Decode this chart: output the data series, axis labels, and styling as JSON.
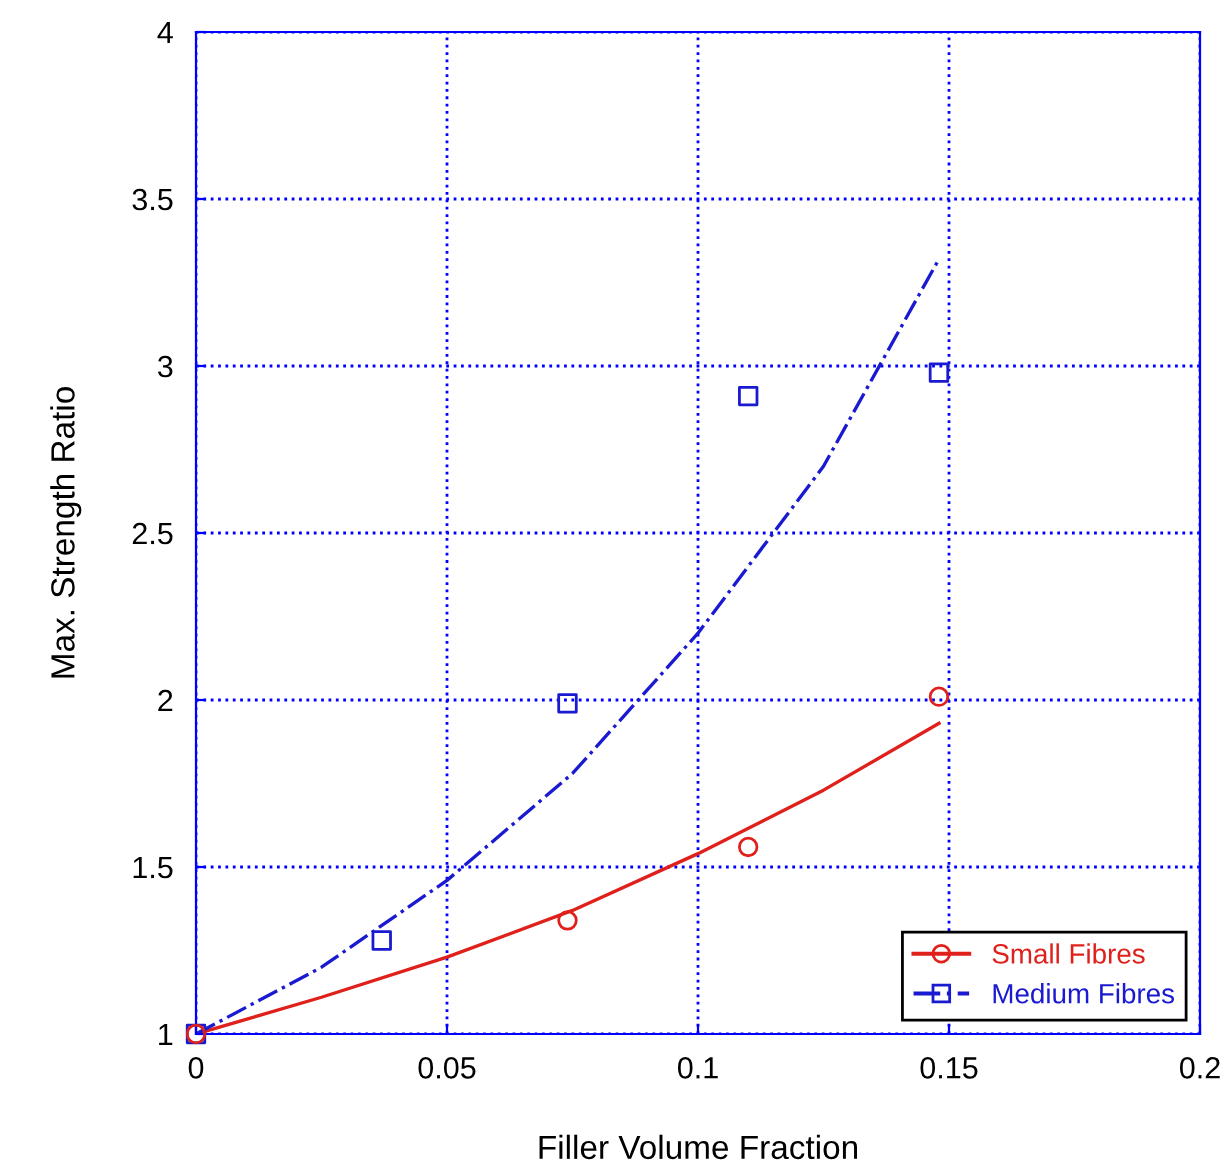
{
  "chart_data": {
    "type": "scatter",
    "xlabel": "Filler Volume Fraction",
    "ylabel": "Max. Strength Ratio",
    "xlim": [
      0,
      0.2
    ],
    "ylim": [
      1,
      4
    ],
    "xticks": [
      0,
      0.05,
      0.1,
      0.15,
      0.2
    ],
    "yticks": [
      1,
      1.5,
      2,
      2.5,
      3,
      3.5,
      4
    ],
    "grid": true,
    "legend": "bottom right",
    "series": [
      {
        "name": "Small Fibres",
        "marker": "circle",
        "color": "#e0201b",
        "x": [
          0,
          0.074,
          0.11,
          0.148
        ],
        "values": [
          1,
          1.34,
          1.56,
          2.01
        ]
      },
      {
        "name": "Medium Fibres",
        "marker": "square",
        "color": "#1a1ad0",
        "x": [
          0,
          0.037,
          0.074,
          0.11,
          0.148
        ],
        "values": [
          1,
          1.28,
          1.99,
          2.91,
          2.98
        ]
      },
      {
        "type": "line",
        "line_style": "solid",
        "color": "#e0201b",
        "x": [
          0,
          0.025,
          0.05,
          0.075,
          0.1,
          0.125,
          0.148
        ],
        "values": [
          1,
          1.11,
          1.23,
          1.37,
          1.54,
          1.73,
          1.93
        ]
      },
      {
        "type": "line",
        "line_style": "dashdot",
        "color": "#1a1ad0",
        "x": [
          0,
          0.025,
          0.05,
          0.075,
          0.1,
          0.125,
          0.148
        ],
        "values": [
          1,
          1.2,
          1.46,
          1.78,
          2.2,
          2.7,
          3.32
        ]
      }
    ]
  }
}
